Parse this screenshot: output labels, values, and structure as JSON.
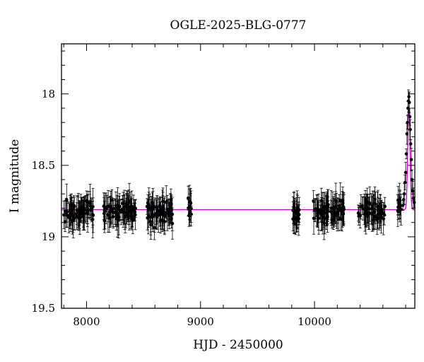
{
  "chart_data": {
    "type": "scatter",
    "title": "OGLE-2025-BLG-0777",
    "xlabel": "HJD - 2450000",
    "ylabel": "I magnitude",
    "xlim": [
      7780,
      10880
    ],
    "ylim": [
      19.5,
      17.65
    ],
    "y_inverted": true,
    "x_ticks": [
      8000,
      9000,
      10000
    ],
    "x_tick_labels": [
      "8000",
      "9000",
      "10000"
    ],
    "y_ticks": [
      18,
      18.5,
      19,
      19.5
    ],
    "y_tick_labels": [
      "18",
      "18.5",
      "19",
      "19.5"
    ],
    "grid": false,
    "legend": "none",
    "colors": {
      "data": "#000000",
      "model": "#cc00cc"
    },
    "observing_seasons": [
      {
        "x_range": [
          7800,
          8060
        ],
        "mean_mag": 18.82,
        "scatter": 0.06,
        "points": 70
      },
      {
        "x_range": [
          8150,
          8430
        ],
        "mean_mag": 18.82,
        "scatter": 0.06,
        "points": 80
      },
      {
        "x_range": [
          8530,
          8760
        ],
        "mean_mag": 18.83,
        "scatter": 0.07,
        "points": 70
      },
      {
        "x_range": [
          8890,
          8920
        ],
        "mean_mag": 18.8,
        "scatter": 0.05,
        "points": 12
      },
      {
        "x_range": [
          9810,
          9870
        ],
        "mean_mag": 18.85,
        "scatter": 0.06,
        "points": 25
      },
      {
        "x_range": [
          9990,
          10260
        ],
        "mean_mag": 18.82,
        "scatter": 0.06,
        "points": 80
      },
      {
        "x_range": [
          10380,
          10620
        ],
        "mean_mag": 18.82,
        "scatter": 0.06,
        "points": 60
      },
      {
        "x_range": [
          10730,
          10760
        ],
        "mean_mag": 18.8,
        "scatter": 0.05,
        "points": 10
      }
    ],
    "event": {
      "x_range": [
        10770,
        10880
      ],
      "peak_x": 10828,
      "peak_mag": 18.03,
      "points": [
        {
          "x": 10775,
          "y": 18.78
        },
        {
          "x": 10782,
          "y": 18.74
        },
        {
          "x": 10788,
          "y": 18.7
        },
        {
          "x": 10794,
          "y": 18.62
        },
        {
          "x": 10800,
          "y": 18.55
        },
        {
          "x": 10806,
          "y": 18.42
        },
        {
          "x": 10811,
          "y": 18.28
        },
        {
          "x": 10816,
          "y": 18.2
        },
        {
          "x": 10820,
          "y": 18.1
        },
        {
          "x": 10824,
          "y": 18.05
        },
        {
          "x": 10828,
          "y": 18.02
        },
        {
          "x": 10832,
          "y": 18.06
        },
        {
          "x": 10836,
          "y": 18.16
        },
        {
          "x": 10840,
          "y": 18.25
        },
        {
          "x": 10844,
          "y": 18.35
        },
        {
          "x": 10849,
          "y": 18.46
        },
        {
          "x": 10855,
          "y": 18.6
        },
        {
          "x": 10862,
          "y": 18.68
        },
        {
          "x": 10868,
          "y": 18.73
        },
        {
          "x": 10875,
          "y": 18.76
        }
      ]
    },
    "model": {
      "baseline_mag": 18.81,
      "peak_x": 10828,
      "peak_mag": 18.08,
      "width": 14
    }
  }
}
